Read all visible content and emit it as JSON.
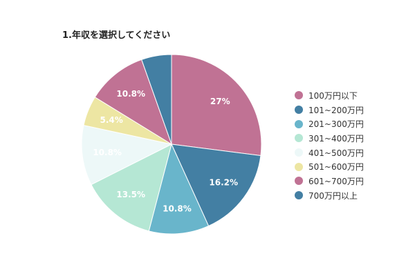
{
  "chart_data": {
    "type": "pie",
    "title": "1.年収を選択してください",
    "categories": [
      "100万円以下",
      "101~200万円",
      "201~300万円",
      "301~400万円",
      "401~500万円",
      "501~600万円",
      "601~700万円",
      "700万円以上"
    ],
    "values": [
      27.0,
      16.2,
      10.8,
      13.5,
      10.8,
      5.4,
      10.8,
      5.4
    ],
    "data_labels": [
      "27%",
      "16.2%",
      "10.8%",
      "13.5%",
      "10.8%",
      "5.4%",
      "10.8%",
      ""
    ],
    "colors": [
      "#c07294",
      "#437fa3",
      "#69b5cb",
      "#b5e7d4",
      "#edf8f8",
      "#ede6a3",
      "#c07294",
      "#437fa3"
    ],
    "legend_position": "right",
    "start_angle": "top",
    "direction": "clockwise"
  }
}
